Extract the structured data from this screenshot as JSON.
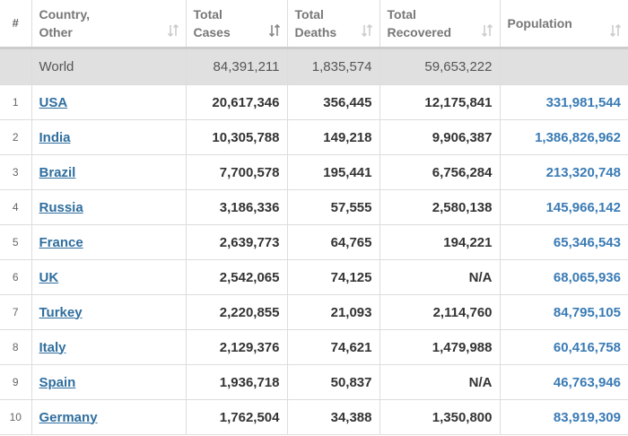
{
  "table": {
    "header": [
      [
        "#"
      ],
      [
        "Country,",
        "Other"
      ],
      [
        "Total",
        "Cases"
      ],
      [
        "Total",
        "Deaths"
      ],
      [
        "Total",
        "Recovered"
      ],
      [
        "Population"
      ]
    ],
    "world": [
      "World",
      "84,391,211",
      "1,835,574",
      "59,653,222"
    ],
    "rows": [
      [
        "1",
        "USA",
        "20,617,346",
        "356,445",
        "12,175,841",
        "331,981,544"
      ],
      [
        "2",
        "India",
        "10,305,788",
        "149,218",
        "9,906,387",
        "1,386,826,962"
      ],
      [
        "3",
        "Brazil",
        "7,700,578",
        "195,441",
        "6,756,284",
        "213,320,748"
      ],
      [
        "4",
        "Russia",
        "3,186,336",
        "57,555",
        "2,580,138",
        "145,966,142"
      ],
      [
        "5",
        "France",
        "2,639,773",
        "64,765",
        "194,221",
        "65,346,543"
      ],
      [
        "6",
        "UK",
        "2,542,065",
        "74,125",
        "N/A",
        "68,065,936"
      ],
      [
        "7",
        "Turkey",
        "2,220,855",
        "21,093",
        "2,114,760",
        "84,795,105"
      ],
      [
        "8",
        "Italy",
        "2,129,376",
        "74,621",
        "1,479,988",
        "60,416,758"
      ],
      [
        "9",
        "Spain",
        "1,936,718",
        "50,837",
        "N/A",
        "46,763,946"
      ],
      [
        "10",
        "Germany",
        "1,762,504",
        "34,388",
        "1,350,800",
        "83,919,309"
      ]
    ]
  }
}
